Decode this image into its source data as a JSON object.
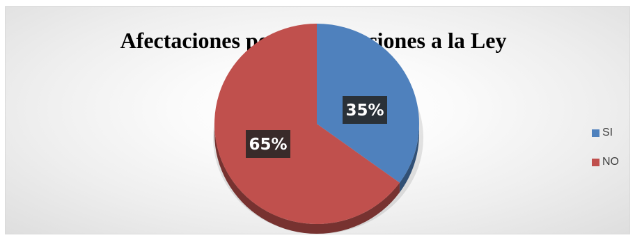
{
  "chart_data": {
    "type": "pie",
    "title": "Afectaciones por modificaciones a la Ley",
    "categories": [
      "SI",
      "NO"
    ],
    "values": [
      35,
      65
    ],
    "data_labels": [
      "35%",
      "65%"
    ],
    "colors": [
      "#4f81bd",
      "#c0504d"
    ],
    "legend_position": "right",
    "style": "3d"
  }
}
